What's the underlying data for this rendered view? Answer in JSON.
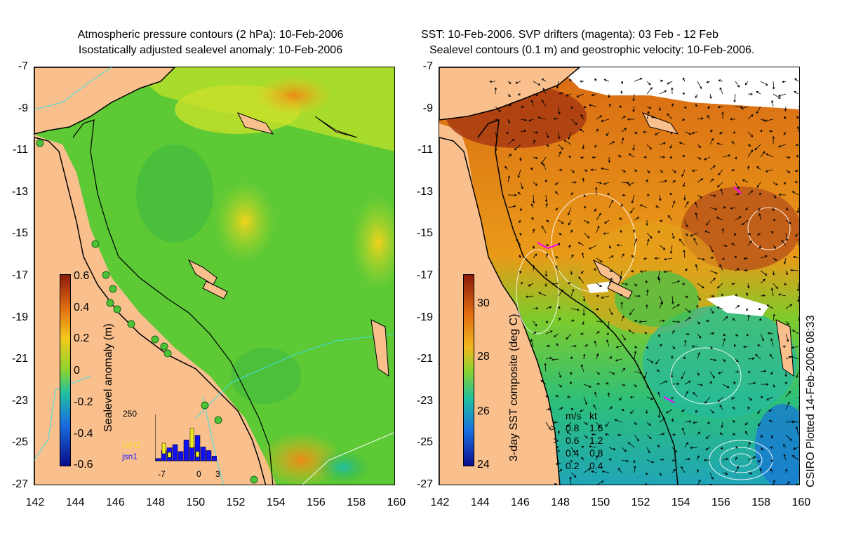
{
  "left": {
    "title_line1": "Atmospheric pressure contours (2 hPa): 10-Feb-2006",
    "title_line2": "Isostatically adjusted sealevel anomaly: 10-Feb-2006",
    "colorbar_label": "Sealevel anomaly (m)",
    "colorbar_ticks": [
      "0.6",
      "0.4",
      "0.2",
      "0",
      "-0.2",
      "-0.4",
      "-0.6"
    ],
    "inset": {
      "ymax_label": "250",
      "x_labels": [
        "-7",
        "0",
        "3"
      ],
      "legend_gfo": "GFO",
      "legend_jsn1": "jsn1",
      "bars_blue": [
        0.05,
        0.22,
        0.28,
        0.35,
        0.2,
        0.45,
        0.3,
        0.55,
        0.3,
        0.22,
        0.1
      ],
      "bars_yellow": [
        0.0,
        0.38,
        0.18,
        0.0,
        0.0,
        0.0,
        0.7,
        0.2,
        0.0,
        0.0,
        0.0
      ]
    }
  },
  "right": {
    "title_line1": "SST: 10-Feb-2006. SVP drifters (magenta): 03 Feb - 12 Feb",
    "title_line2": "Sealevel contours (0.1 m) and geostrophic velocity: 10-Feb-2006.",
    "colorbar_label": "3-day SST composite (deg C)",
    "colorbar_ticks": [
      "30",
      "28",
      "26",
      "24"
    ],
    "speed_legend": {
      "header_ms": "m/s",
      "header_kt": "kt",
      "rows": [
        {
          "ms": "0.8",
          "kt": "1.6"
        },
        {
          "ms": "0.6",
          "kt": "1.2"
        },
        {
          "ms": "0.4",
          "kt": "0.8"
        },
        {
          "ms": "0.2",
          "kt": "0.4"
        }
      ]
    },
    "credit": "CSIRO Plotted 14-Feb-2006 08:33"
  },
  "axes": {
    "lat_ticks": [
      "-7",
      "-9",
      "-11",
      "-13",
      "-15",
      "-17",
      "-19",
      "-21",
      "-23",
      "-25",
      "-27"
    ],
    "lon_ticks": [
      "142",
      "144",
      "146",
      "148",
      "150",
      "152",
      "154",
      "156",
      "158",
      "160"
    ]
  },
  "colors": {
    "land": "#f9c08e",
    "shelf_line": "#000000",
    "isobath": "#40e0e0",
    "drifter": "#ff00ff"
  }
}
